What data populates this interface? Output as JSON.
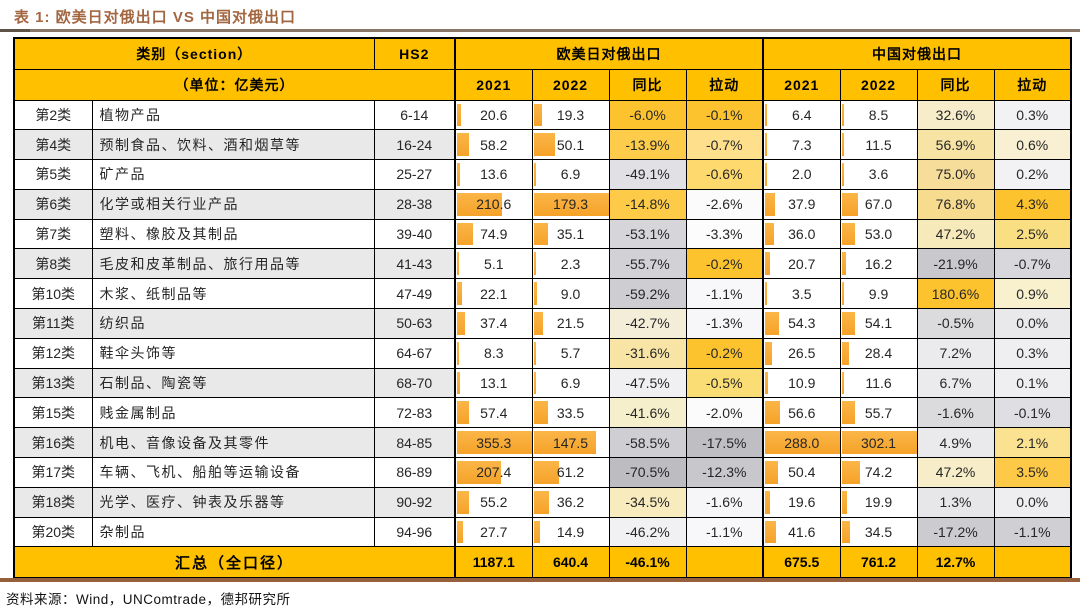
{
  "title": "表 1: 欧美日对俄出口 VS 中国对俄出口",
  "source": "资料来源：Wind，UNComtrade，德邦研究所",
  "colors": {
    "header_gold": "#FFC000",
    "bar_orange": "#F6A62F",
    "stripe_gray": "#E9E9E9",
    "title_brown": "#A26640",
    "rule_top_brown": "#8B7767",
    "rule_bottom_brown": "#96613A",
    "border_black": "#000000",
    "scale_high_gold": "#FDC32F",
    "scale_low_gray": "#BCBCC1"
  },
  "table": {
    "header": {
      "category": "类别（section）",
      "hs2": "HS2",
      "west_group": "欧美日对俄出口",
      "china_group": "中国对俄出口",
      "unit": "（单位：亿美元）",
      "subcols": [
        "2021",
        "2022",
        "同比",
        "拉动"
      ]
    },
    "total_label": "汇总（全口径）",
    "bar_max": [
      355.3,
      179.3,
      288.0,
      302.1
    ],
    "yoy_pull_bgs": [
      [
        "#FDC32F",
        "#FDC32F",
        "#F7EDCB",
        "#F2F2F5"
      ],
      [
        "#FDCC4B",
        "#FEDF8C",
        "#F7E3A4",
        "#F9F0D3"
      ],
      [
        "#E1E1E5",
        "#FED96E",
        "#F6DE9A",
        "#F2F2F5"
      ],
      [
        "#FDCB48",
        "#FBFBFC",
        "#F7DC90",
        "#FDC32F"
      ],
      [
        "#D6D6DA",
        "#FCFCFD",
        "#F7EABA",
        "#FADF82"
      ],
      [
        "#D2D2D6",
        "#FDC32F",
        "#C8C8CD",
        "#D8D8DC"
      ],
      [
        "#CDCDD2",
        "#F8F8FA",
        "#FDC32F",
        "#F9F0CE"
      ],
      [
        "#F4EED9",
        "#F7F7F9",
        "#DBDBDE",
        "#E9E9EC"
      ],
      [
        "#F8E5A6",
        "#FDC32F",
        "#EBEBEE",
        "#EFEFF2"
      ],
      [
        "#F0F0F3",
        "#FADD74",
        "#EBEBEE",
        "#EFEFF2"
      ],
      [
        "#F6EFCB",
        "#FBFBFC",
        "#DBDBDE",
        "#DFDFE3"
      ],
      [
        "#CECED3",
        "#BEBEC3",
        "#EAEAED",
        "#FAE291"
      ],
      [
        "#BCBCC1",
        "#C7C7CC",
        "#F7EDC9",
        "#FEC947"
      ],
      [
        "#F8EBBE",
        "#F6F6F8",
        "#E7E7EA",
        "#EEEEF1"
      ],
      [
        "#F1F1F4",
        "#F8F8FA",
        "#CBCBD0",
        "#CFCFD4"
      ]
    ]
  },
  "chart_data": {
    "type": "table",
    "title": "表 1: 欧美日对俄出口 VS 中国对俄出口",
    "unit": "亿美元",
    "columns": [
      "类别",
      "名称",
      "HS2",
      "欧美日2021",
      "欧美日2022",
      "欧美日同比%",
      "欧美日拉动%",
      "中国2021",
      "中国2022",
      "中国同比%",
      "中国拉动%"
    ],
    "rows": [
      [
        "第2类",
        "植物产品",
        "6-14",
        20.6,
        19.3,
        -6.0,
        -0.1,
        6.4,
        8.5,
        32.6,
        0.3
      ],
      [
        "第4类",
        "预制食品、饮料、酒和烟草等",
        "16-24",
        58.2,
        50.1,
        -13.9,
        -0.7,
        7.3,
        11.5,
        56.9,
        0.6
      ],
      [
        "第5类",
        "矿产品",
        "25-27",
        13.6,
        6.9,
        -49.1,
        -0.6,
        2.0,
        3.6,
        75.0,
        0.2
      ],
      [
        "第6类",
        "化学或相关行业产品",
        "28-38",
        210.6,
        179.3,
        -14.8,
        -2.6,
        37.9,
        67.0,
        76.8,
        4.3
      ],
      [
        "第7类",
        "塑料、橡胶及其制品",
        "39-40",
        74.9,
        35.1,
        -53.1,
        -3.3,
        36.0,
        53.0,
        47.2,
        2.5
      ],
      [
        "第8类",
        "毛皮和皮革制品、旅行用品等",
        "41-43",
        5.1,
        2.3,
        -55.7,
        -0.2,
        20.7,
        16.2,
        -21.9,
        -0.7
      ],
      [
        "第10类",
        "木浆、纸制品等",
        "47-49",
        22.1,
        9.0,
        -59.2,
        -1.1,
        3.5,
        9.9,
        180.6,
        0.9
      ],
      [
        "第11类",
        "纺织品",
        "50-63",
        37.4,
        21.5,
        -42.7,
        -1.3,
        54.3,
        54.1,
        -0.5,
        0.0
      ],
      [
        "第12类",
        "鞋伞头饰等",
        "64-67",
        8.3,
        5.7,
        -31.6,
        -0.2,
        26.5,
        28.4,
        7.2,
        0.3
      ],
      [
        "第13类",
        "石制品、陶瓷等",
        "68-70",
        13.1,
        6.9,
        -47.5,
        -0.5,
        10.9,
        11.6,
        6.7,
        0.1
      ],
      [
        "第15类",
        "贱金属制品",
        "72-83",
        57.4,
        33.5,
        -41.6,
        -2.0,
        56.6,
        55.7,
        -1.6,
        -0.1
      ],
      [
        "第16类",
        "机电、音像设备及其零件",
        "84-85",
        355.3,
        147.5,
        -58.5,
        -17.5,
        288.0,
        302.1,
        4.9,
        2.1
      ],
      [
        "第17类",
        "车辆、飞机、船舶等运输设备",
        "86-89",
        207.4,
        61.2,
        -70.5,
        -12.3,
        50.4,
        74.2,
        47.2,
        3.5
      ],
      [
        "第18类",
        "光学、医疗、钟表及乐器等",
        "90-92",
        55.2,
        36.2,
        -34.5,
        -1.6,
        19.6,
        19.9,
        1.3,
        0.0
      ],
      [
        "第20类",
        "杂制品",
        "94-96",
        27.7,
        14.9,
        -46.2,
        -1.1,
        41.6,
        34.5,
        -17.2,
        -1.1
      ]
    ],
    "total": [
      "汇总（全口径）",
      "",
      "",
      1187.1,
      640.4,
      -46.1,
      null,
      675.5,
      761.2,
      12.7,
      null
    ]
  }
}
